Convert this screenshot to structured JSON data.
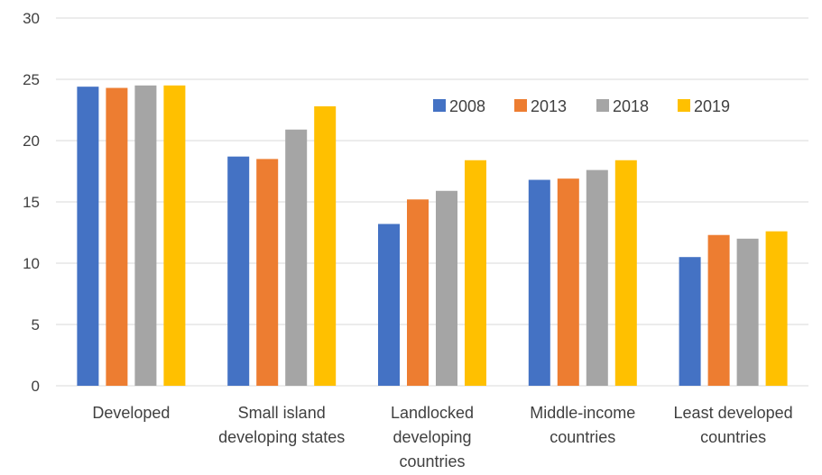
{
  "chart_data": {
    "type": "bar",
    "title": "",
    "xlabel": "",
    "ylabel": "",
    "ylim": [
      0,
      30
    ],
    "yticks": [
      0,
      5,
      10,
      15,
      20,
      25,
      30
    ],
    "grid": true,
    "legend_position": "top-right",
    "categories": [
      [
        "Developed"
      ],
      [
        "Small island",
        "developing states"
      ],
      [
        "Landlocked",
        "developing",
        "countries"
      ],
      [
        "Middle-income",
        "countries"
      ],
      [
        "Least developed",
        "countries"
      ]
    ],
    "series": [
      {
        "name": "2008",
        "color": "#4472C4",
        "values": [
          24.4,
          18.7,
          13.2,
          16.8,
          10.5
        ]
      },
      {
        "name": "2013",
        "color": "#ED7D31",
        "values": [
          24.3,
          18.5,
          15.2,
          16.9,
          12.3
        ]
      },
      {
        "name": "2018",
        "color": "#A5A5A5",
        "values": [
          24.5,
          20.9,
          15.9,
          17.6,
          12.0
        ]
      },
      {
        "name": "2019",
        "color": "#FFC000",
        "values": [
          24.5,
          22.8,
          18.4,
          18.4,
          12.6
        ]
      }
    ],
    "grid_color": "#D9D9D9"
  }
}
